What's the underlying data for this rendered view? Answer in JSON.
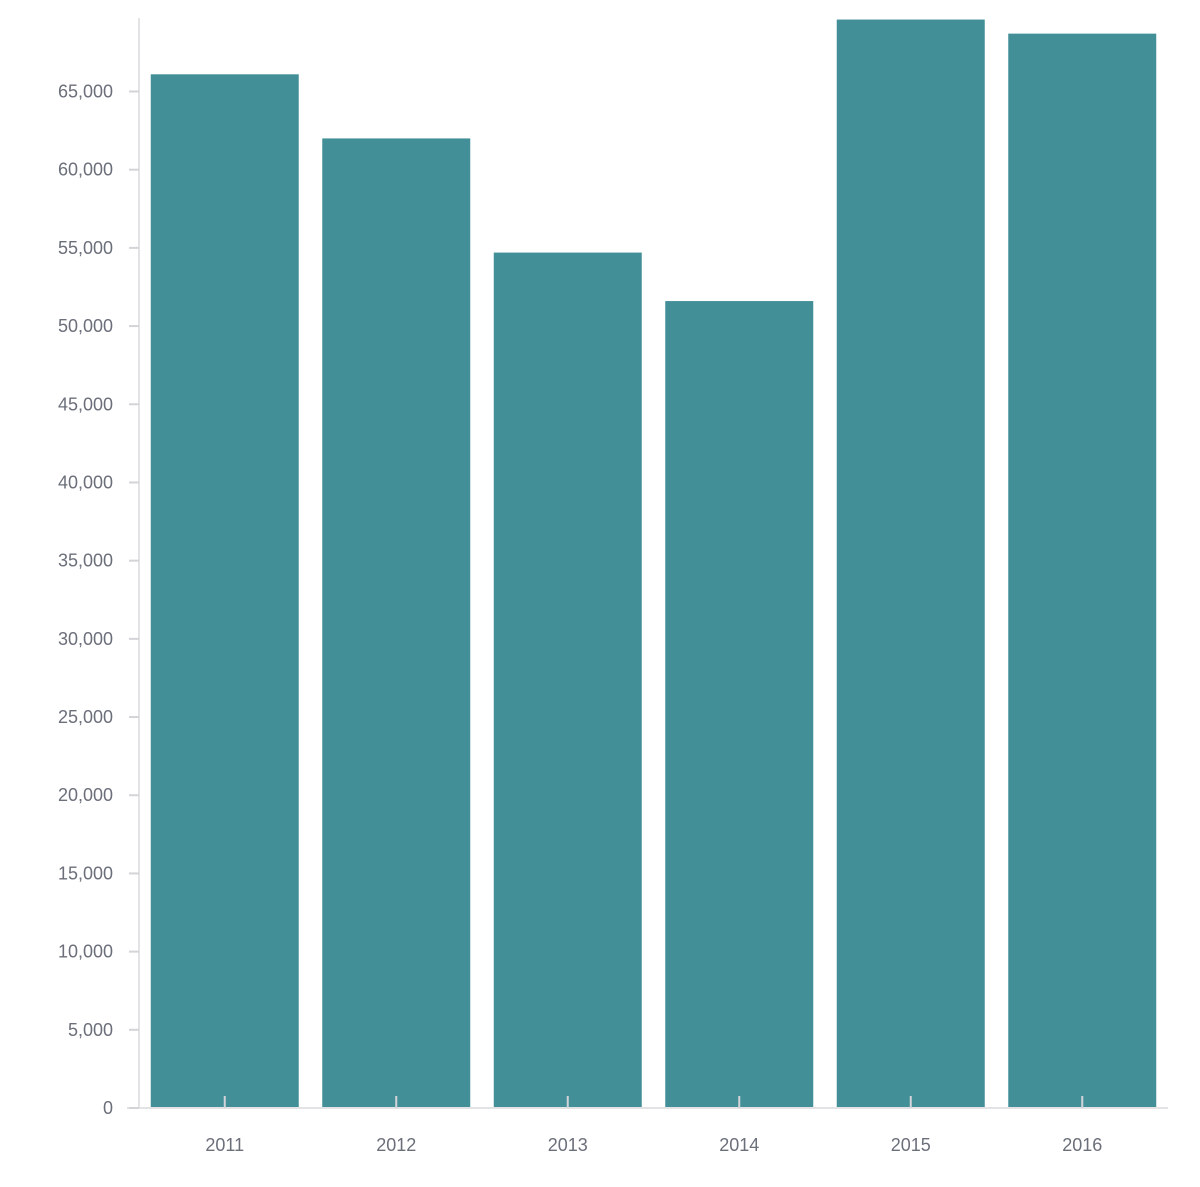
{
  "chart_data": {
    "type": "bar",
    "categories": [
      "2011",
      "2012",
      "2013",
      "2014",
      "2015",
      "2016"
    ],
    "values": [
      66100,
      62000,
      54700,
      51600,
      69600,
      68700
    ],
    "title": "",
    "xlabel": "",
    "ylabel": "",
    "ylim": [
      0,
      69700
    ],
    "yticks": [
      0,
      5000,
      10000,
      15000,
      20000,
      25000,
      30000,
      35000,
      40000,
      45000,
      50000,
      55000,
      60000,
      65000
    ],
    "ytick_labels": [
      "0",
      "5,000",
      "10,000",
      "15,000",
      "20,000",
      "25,000",
      "30,000",
      "35,000",
      "40,000",
      "45,000",
      "50,000",
      "55,000",
      "60,000",
      "65,000"
    ],
    "grid": false,
    "bar_color": "#428f97",
    "axis_color": "#e3e3e6",
    "label_color": "#6b6f7a"
  }
}
